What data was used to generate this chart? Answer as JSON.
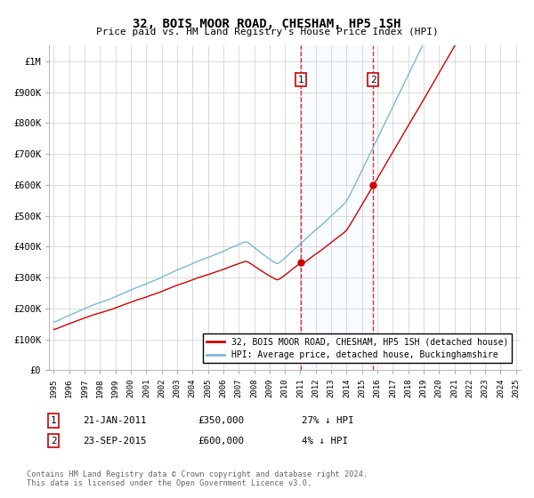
{
  "title": "32, BOIS MOOR ROAD, CHESHAM, HP5 1SH",
  "subtitle": "Price paid vs. HM Land Registry's House Price Index (HPI)",
  "ylim": [
    0,
    1050000
  ],
  "yticks": [
    0,
    100000,
    200000,
    300000,
    400000,
    500000,
    600000,
    700000,
    800000,
    900000,
    1000000
  ],
  "ytick_labels": [
    "£0",
    "£100K",
    "£200K",
    "£300K",
    "£400K",
    "£500K",
    "£600K",
    "£700K",
    "£800K",
    "£900K",
    "£1M"
  ],
  "sale1_year": 2011.05,
  "sale1_price": 350000,
  "sale2_year": 2015.73,
  "sale2_price": 600000,
  "hpi_color": "#7ab8d8",
  "sale_color": "#cc0000",
  "vline_color": "#cc0000",
  "shade_color": "#ddeeff",
  "legend_label1": "32, BOIS MOOR ROAD, CHESHAM, HP5 1SH (detached house)",
  "legend_label2": "HPI: Average price, detached house, Buckinghamshire",
  "annotation1_date": "21-JAN-2011",
  "annotation1_price": "£350,000",
  "annotation1_hpi": "27% ↓ HPI",
  "annotation2_date": "23-SEP-2015",
  "annotation2_price": "£600,000",
  "annotation2_hpi": "4% ↓ HPI",
  "footer": "Contains HM Land Registry data © Crown copyright and database right 2024.\nThis data is licensed under the Open Government Licence v3.0.",
  "background_color": "#ffffff",
  "grid_color": "#cccccc"
}
